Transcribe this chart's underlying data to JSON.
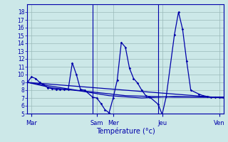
{
  "xlabel": "Température (°c)",
  "background_color": "#cce8e8",
  "grid_color": "#9ababa",
  "line_color": "#0000aa",
  "xlim": [
    0,
    48
  ],
  "ylim": [
    5,
    19
  ],
  "yticks": [
    5,
    6,
    7,
    8,
    9,
    10,
    11,
    12,
    13,
    14,
    15,
    16,
    17,
    18
  ],
  "xtick_positions": [
    1,
    17,
    21,
    33,
    47
  ],
  "xtick_labels": [
    "Mar",
    "Sam",
    "Mer",
    "Jeu",
    "Ven"
  ],
  "vlines": [
    16,
    32
  ],
  "main_x": [
    0,
    1,
    2,
    3,
    4,
    5,
    6,
    7,
    8,
    9,
    10,
    11,
    12,
    13,
    14,
    16,
    17,
    18,
    19,
    20,
    21,
    22,
    23,
    24,
    25,
    26,
    27,
    28,
    29,
    30,
    32,
    33,
    34,
    36,
    37,
    38,
    39,
    40,
    42,
    43,
    44,
    45,
    46,
    47,
    48
  ],
  "main_y": [
    9.0,
    9.7,
    9.5,
    9.0,
    8.7,
    8.3,
    8.2,
    8.1,
    8.1,
    8.1,
    8.1,
    11.5,
    10.0,
    8.1,
    8.0,
    7.1,
    7.0,
    6.3,
    5.5,
    5.1,
    7.0,
    9.3,
    14.1,
    13.5,
    10.8,
    9.5,
    8.9,
    8.0,
    7.3,
    7.1,
    6.2,
    4.9,
    7.2,
    15.1,
    18.0,
    15.8,
    11.7,
    8.0,
    7.5,
    7.3,
    7.2,
    7.1,
    7.1,
    7.1,
    7.1
  ],
  "trend1_x": [
    0,
    6,
    13,
    20,
    28,
    36,
    44,
    48
  ],
  "trend1_y": [
    9.0,
    8.3,
    7.9,
    7.3,
    7.0,
    7.2,
    7.1,
    7.1
  ],
  "trend2_x": [
    0,
    12,
    24,
    36,
    48
  ],
  "trend2_y": [
    9.0,
    8.0,
    7.3,
    7.1,
    7.1
  ],
  "trend3_x": [
    0,
    48
  ],
  "trend3_y": [
    9.0,
    7.0
  ]
}
